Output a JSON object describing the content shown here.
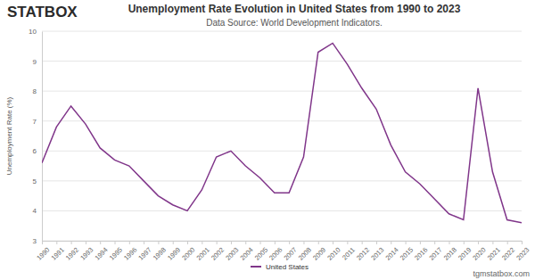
{
  "chart_data": {
    "type": "line",
    "title": "Unemployment Rate Evolution in United States from 1990 to 2023",
    "subtitle": "Data Source: World Development Indicators.",
    "y_label": "Unemployment Rate (%)",
    "categories": [
      "1990",
      "1991",
      "1992",
      "1993",
      "1994",
      "1995",
      "1996",
      "1997",
      "1998",
      "1999",
      "2000",
      "2001",
      "2002",
      "2003",
      "2004",
      "2005",
      "2006",
      "2007",
      "2008",
      "2009",
      "2010",
      "2011",
      "2012",
      "2013",
      "2014",
      "2015",
      "2016",
      "2017",
      "2018",
      "2019",
      "2020",
      "2021",
      "2022",
      "2023"
    ],
    "series": [
      {
        "name": "United States",
        "color": "#80368a",
        "values": [
          5.6,
          6.8,
          7.5,
          6.9,
          6.1,
          5.7,
          5.5,
          5.0,
          4.5,
          4.2,
          4.0,
          4.7,
          5.8,
          6.0,
          5.5,
          5.1,
          4.6,
          4.6,
          5.8,
          9.3,
          9.6,
          8.9,
          8.1,
          7.4,
          6.2,
          5.3,
          4.9,
          4.4,
          3.9,
          3.7,
          8.1,
          5.3,
          3.7,
          3.6
        ]
      }
    ],
    "ylim": [
      3,
      10
    ],
    "yticks": [
      3,
      4,
      5,
      6,
      7,
      8,
      9,
      10
    ],
    "grid": true,
    "legend": "bottom"
  },
  "header": {
    "logo": "STATBOX"
  },
  "footer": {
    "site": "tgmstatbox.com"
  }
}
